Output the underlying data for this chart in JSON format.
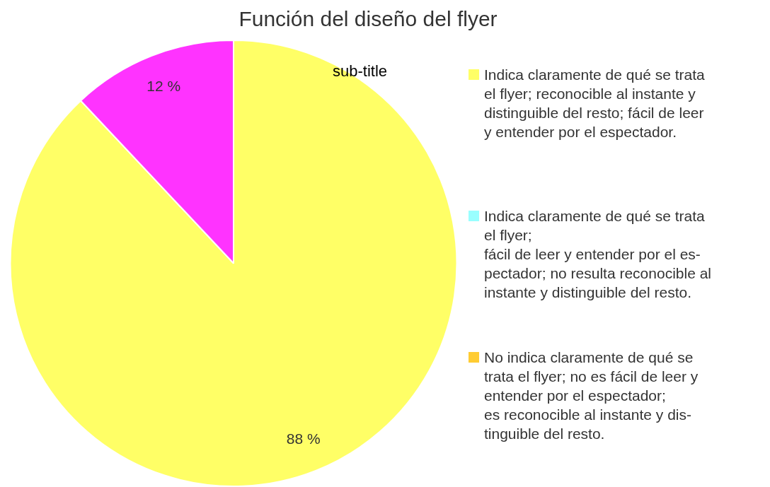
{
  "chart_data": {
    "type": "pie",
    "title": "Función del diseño del flyer",
    "subtitle": "sub-title",
    "categories": [
      "Indica claramente de qué se trata\nel flyer; reconocible al instante y\ndistinguible del resto; fácil de leer\ny entender por el espectador.",
      "Indica claramente de qué se trata\nel flyer;\nfácil de leer y entender por el es-\npectador; no resulta reconocible al\ninstante y distinguible del resto.",
      "No indica claramente de qué se\ntrata el flyer;  no es fácil de leer y\nentender por el espectador;\nes reconocible al instante y dis-\ntinguible del resto.",
      null
    ],
    "values": [
      88,
      0,
      0,
      12
    ],
    "colors": [
      "#ffff66",
      "#99ffff",
      "#ffcc33",
      "#ff33ff"
    ],
    "value_labels": [
      "88 %",
      null,
      null,
      "12 %"
    ],
    "legend": "right"
  }
}
